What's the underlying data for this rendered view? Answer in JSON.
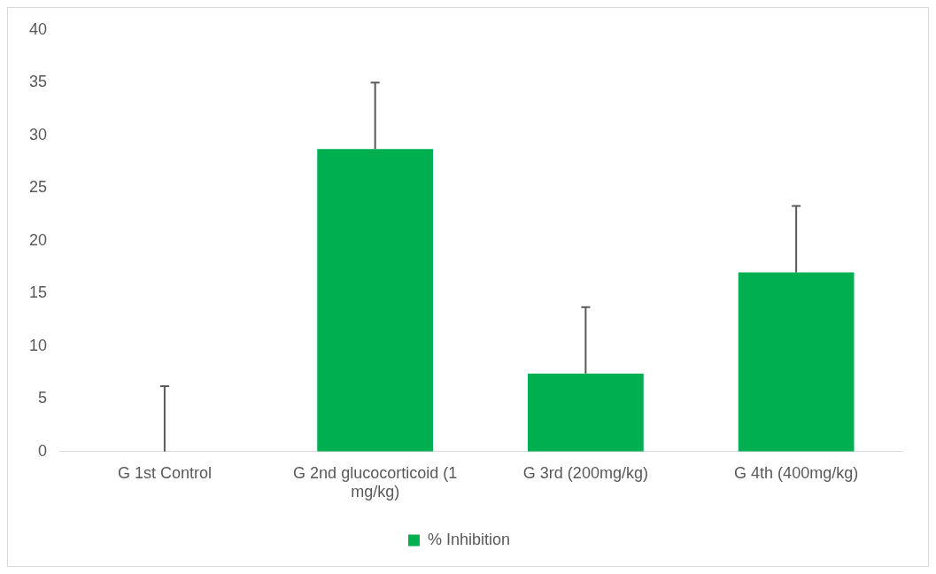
{
  "chart_data": {
    "type": "bar",
    "categories": [
      "G 1st Control",
      "G 2nd glucocorticoid (1 mg/kg)",
      "G 3rd (200mg/kg)",
      "G 4th (400mg/kg)"
    ],
    "series": [
      {
        "name": "% Inhibition",
        "color": "#00b050",
        "values": [
          0,
          28.7,
          7.4,
          17.0
        ],
        "errors": [
          [
            0,
            6.2
          ],
          [
            28.7,
            35.0
          ],
          [
            7.4,
            13.7
          ],
          [
            17.0,
            23.3
          ]
        ]
      }
    ],
    "ylim": [
      0,
      40
    ],
    "yticks": [
      0,
      5,
      10,
      15,
      20,
      25,
      30,
      35,
      40
    ],
    "grid": false,
    "legend": "bottom"
  }
}
